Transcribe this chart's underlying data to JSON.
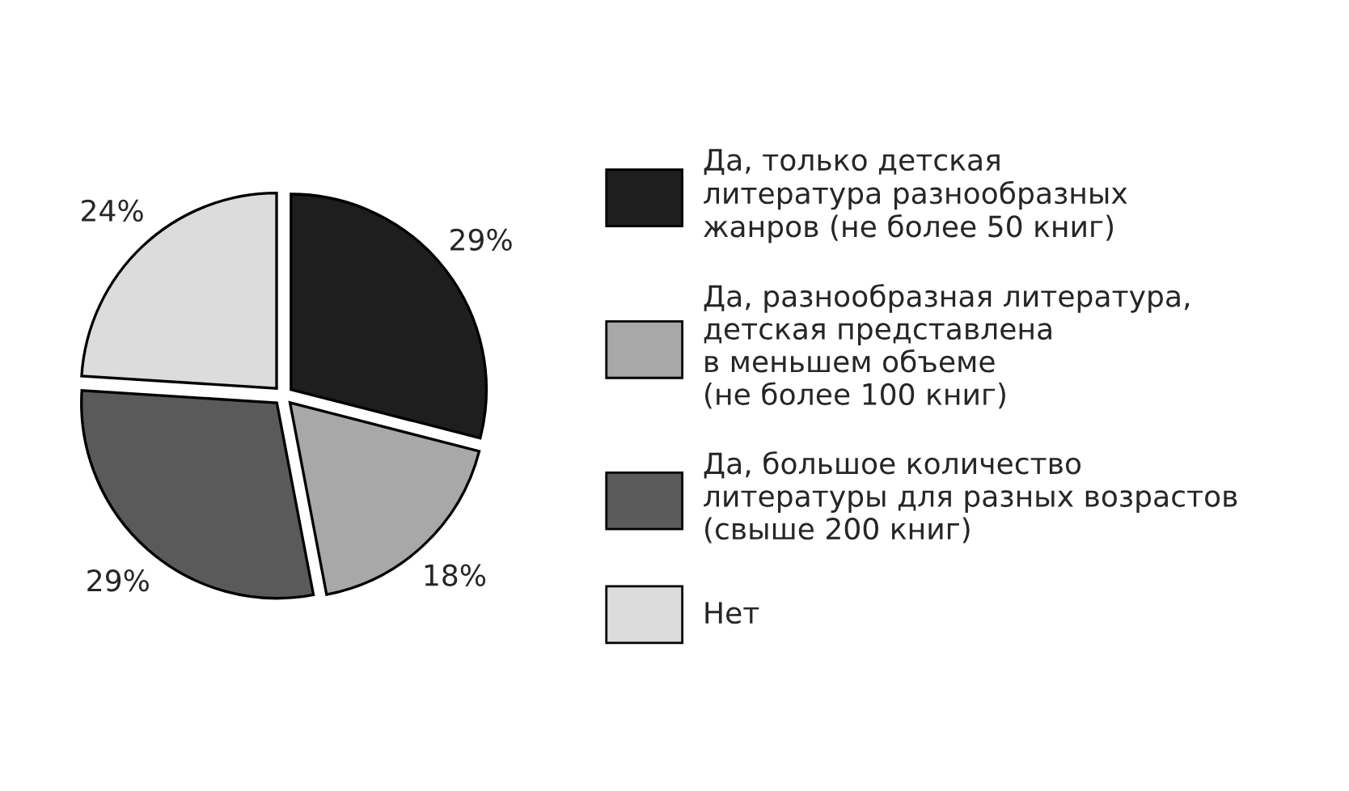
{
  "chart_data": {
    "type": "pie",
    "categories": [
      "Да, только детская\nлитература разнообразных\nжанров (не более 50 книг)",
      "Да, разнообразная литература,\nдетская представлена\nв меньшем объеме\n(не более 100 книг)",
      "Да, большое количество\nлитературы для разных возрастов\n(свыше 200 книг)",
      "Нет"
    ],
    "values": [
      29,
      18,
      29,
      24
    ],
    "colors": [
      "#1e1e1e",
      "#a8a8a8",
      "#5a5a5a",
      "#dcdcdc"
    ],
    "value_labels": [
      "29%",
      "18%",
      "29%",
      "24%"
    ],
    "legend": "right"
  }
}
